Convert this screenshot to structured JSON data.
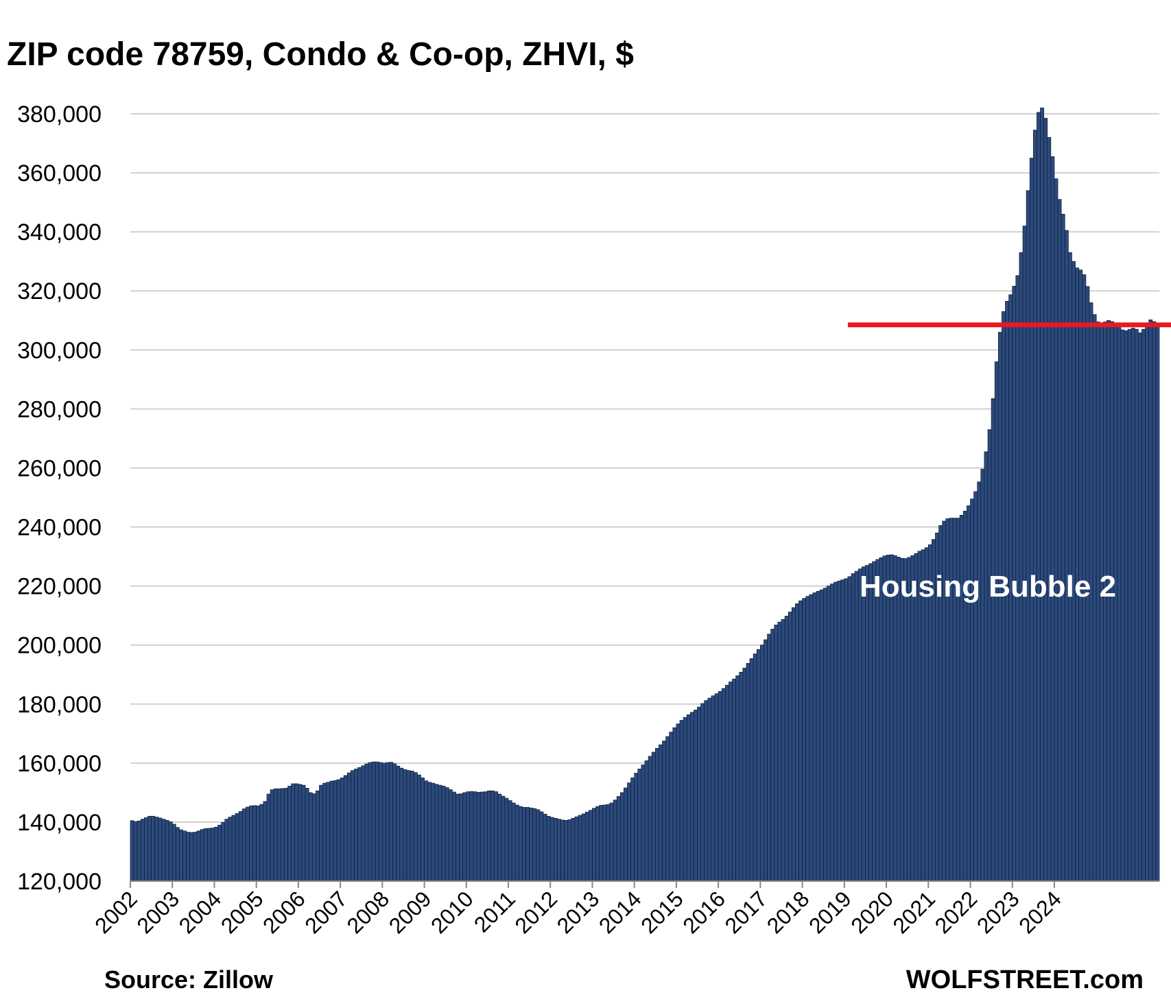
{
  "title": "ZIP code 78759, Condo & Co-op, ZHVI, $",
  "source": "Source: Zillow",
  "brand": "WOLFSTREET.com",
  "chart_data": {
    "type": "bar",
    "title": "ZIP code 78759, Condo & Co-op, ZHVI, $",
    "xlabel": "",
    "ylabel": "",
    "ylim": [
      120000,
      380000
    ],
    "yticks": [
      120000,
      140000,
      160000,
      180000,
      200000,
      220000,
      240000,
      260000,
      280000,
      300000,
      320000,
      340000,
      360000,
      380000
    ],
    "ytick_labels": [
      "120,000",
      "140,000",
      "160,000",
      "180,000",
      "200,000",
      "220,000",
      "240,000",
      "260,000",
      "280,000",
      "300,000",
      "320,000",
      "340,000",
      "360,000",
      "380,000"
    ],
    "xtick_labels": [
      "2002",
      "2003",
      "2004",
      "2005",
      "2006",
      "2007",
      "2008",
      "2009",
      "2010",
      "2011",
      "2012",
      "2013",
      "2014",
      "2015",
      "2016",
      "2017",
      "2018",
      "2019",
      "2020",
      "2021",
      "2022",
      "2023",
      "2024"
    ],
    "grid": true,
    "bar_color": "#2c4a7c",
    "start": "2002-01",
    "frequency": "monthly",
    "reference_line": {
      "value": 308500,
      "start": "2019-02",
      "color": "#e8191f"
    },
    "annotation": "Housing Bubble 2",
    "values": [
      140500,
      140200,
      140400,
      141000,
      141500,
      142000,
      142000,
      141700,
      141400,
      141000,
      140600,
      140100,
      139300,
      138200,
      137400,
      137000,
      136600,
      136500,
      136600,
      137000,
      137500,
      137800,
      137900,
      138000,
      138300,
      139000,
      139900,
      141000,
      141700,
      142300,
      142900,
      143600,
      144500,
      145100,
      145500,
      145600,
      145500,
      146000,
      147000,
      149500,
      151000,
      151300,
      151300,
      151400,
      151500,
      152200,
      153000,
      153000,
      152800,
      152500,
      151500,
      150000,
      149600,
      150600,
      152500,
      153200,
      153500,
      153900,
      154100,
      154400,
      155000,
      155800,
      156700,
      157500,
      158000,
      158500,
      159100,
      159700,
      160200,
      160400,
      160400,
      160200,
      160000,
      160200,
      160300,
      159800,
      159000,
      158300,
      157800,
      157500,
      157300,
      156800,
      156000,
      155000,
      154000,
      153500,
      153200,
      152800,
      152500,
      152200,
      151700,
      151000,
      150200,
      149500,
      149600,
      150000,
      150300,
      150400,
      150300,
      150100,
      150200,
      150300,
      150600,
      150600,
      150300,
      149500,
      148800,
      148100,
      147300,
      146500,
      145800,
      145300,
      145000,
      145000,
      144800,
      144600,
      144200,
      143500,
      142700,
      142000,
      141600,
      141300,
      141000,
      140700,
      140600,
      140800,
      141300,
      141800,
      142300,
      142800,
      143400,
      144000,
      144700,
      145300,
      145700,
      145800,
      146000,
      146500,
      147500,
      148700,
      150000,
      151600,
      153300,
      155000,
      156600,
      158000,
      159400,
      160800,
      162300,
      163700,
      165000,
      166200,
      167500,
      169000,
      170500,
      172000,
      173300,
      174500,
      175500,
      176400,
      177200,
      178000,
      179000,
      180200,
      181200,
      182000,
      182800,
      183500,
      184300,
      185300,
      186400,
      187500,
      188500,
      189600,
      190800,
      192200,
      193800,
      195400,
      197000,
      198500,
      200000,
      201800,
      203700,
      205400,
      206800,
      207800,
      208700,
      209800,
      211200,
      212700,
      214000,
      215000,
      215800,
      216500,
      217100,
      217700,
      218200,
      218700,
      219300,
      220000,
      220700,
      221300,
      221700,
      222100,
      222500,
      223200,
      224200,
      225000,
      225800,
      226500,
      227000,
      227600,
      228300,
      229000,
      229600,
      230200,
      230500,
      230600,
      230300,
      229800,
      229400,
      229300,
      229700,
      230300,
      231000,
      231800,
      232300,
      233000,
      234000,
      235800,
      238000,
      240500,
      242000,
      242800,
      243000,
      243000,
      243000,
      244000,
      245400,
      247200,
      249500,
      252000,
      255300,
      259600,
      265500,
      273000,
      283500,
      296000,
      306000,
      313000,
      316500,
      318700,
      321600,
      325200,
      333000,
      342000,
      354000,
      365000,
      374500,
      380500,
      382000,
      378500,
      372000,
      365500,
      358000,
      351000,
      346000,
      340500,
      333000,
      330000,
      327800,
      327100,
      325500,
      321500,
      316000,
      312000,
      309500,
      308600,
      309500,
      310000,
      309600,
      308600,
      307600,
      306800,
      306500,
      307000,
      307400,
      307000,
      305800,
      307000,
      308500,
      310200,
      309600,
      308700
    ]
  }
}
